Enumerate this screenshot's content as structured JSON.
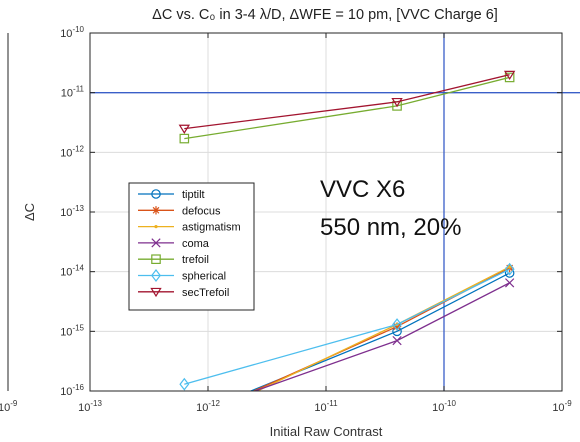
{
  "chart_data": {
    "type": "line",
    "title": "ΔC  vs. C₀ in 3-4 λ/D,  ΔWFE = 10 pm, [VVC Charge 6]",
    "xlabel": "Initial Raw Contrast",
    "ylabel": "ΔC",
    "xscale": "log",
    "yscale": "log",
    "xlim": [
      1e-13,
      1e-09
    ],
    "ylim": [
      1e-16,
      1e-10
    ],
    "grid": true,
    "x_ticks": [
      1e-13,
      1e-12,
      1e-11,
      1e-10,
      1e-09
    ],
    "x_tick_labels": [
      {
        "base": "10",
        "exp": "-13"
      },
      {
        "base": "10",
        "exp": "-12"
      },
      {
        "base": "10",
        "exp": "-11"
      },
      {
        "base": "10",
        "exp": "-10"
      },
      {
        "base": "10",
        "exp": "-9"
      }
    ],
    "y_ticks": [
      1e-16,
      1e-15,
      1e-14,
      1e-13,
      1e-12,
      1e-11,
      1e-10
    ],
    "y_tick_labels": [
      {
        "base": "10",
        "exp": "-16"
      },
      {
        "base": "10",
        "exp": "-15"
      },
      {
        "base": "10",
        "exp": "-14"
      },
      {
        "base": "10",
        "exp": "-13"
      },
      {
        "base": "10",
        "exp": "-12"
      },
      {
        "base": "10",
        "exp": "-11"
      },
      {
        "base": "10",
        "exp": "-10"
      }
    ],
    "left_cutoff_labels": [
      {
        "base": "10",
        "exp": "-9"
      }
    ],
    "reference_lines": [
      {
        "orientation": "horizontal",
        "value": 1e-11,
        "color": "#3a5fc8"
      },
      {
        "orientation": "vertical",
        "value": 1e-10,
        "color": "#3a5fc8"
      }
    ],
    "legend_position": "center-left",
    "series": [
      {
        "name": "tiptilt",
        "color": "#0072BD",
        "marker": "circle",
        "x": [
          6.3e-13,
          4e-11,
          3.6e-10
        ],
        "y": [
          3.5e-17,
          1e-15,
          9.5e-15
        ]
      },
      {
        "name": "defocus",
        "color": "#D95319",
        "marker": "asterisk",
        "x": [
          6.3e-13,
          4e-11,
          3.6e-10
        ],
        "y": [
          3e-17,
          1.2e-15,
          1.15e-14
        ]
      },
      {
        "name": "astigmatism",
        "color": "#EDB120",
        "marker": "dot",
        "x": [
          6.3e-13,
          4e-11,
          3.6e-10
        ],
        "y": [
          2.6e-17,
          1.3e-15,
          1.2e-14
        ]
      },
      {
        "name": "coma",
        "color": "#7E2F8E",
        "marker": "x",
        "x": [
          6.3e-13,
          4e-11,
          3.6e-10
        ],
        "y": [
          3.8e-17,
          7e-16,
          6.5e-15
        ]
      },
      {
        "name": "trefoil",
        "color": "#77AC30",
        "marker": "square",
        "x": [
          6.3e-13,
          4e-11,
          3.6e-10
        ],
        "y": [
          1.7e-12,
          6e-12,
          1.8e-11
        ]
      },
      {
        "name": "spherical",
        "color": "#4DBEEE",
        "marker": "diamond",
        "x": [
          6.3e-13,
          4e-11,
          3.6e-10
        ],
        "y": [
          1.3e-16,
          1.3e-15,
          1.1e-14
        ]
      },
      {
        "name": "secTrefoil",
        "color": "#A2142F",
        "marker": "triangle-down",
        "x": [
          6.3e-13,
          4e-11,
          3.6e-10
        ],
        "y": [
          2.5e-12,
          7e-12,
          2e-11
        ]
      }
    ],
    "annotations": [
      "VVC X6",
      "550 nm, 20%"
    ]
  }
}
